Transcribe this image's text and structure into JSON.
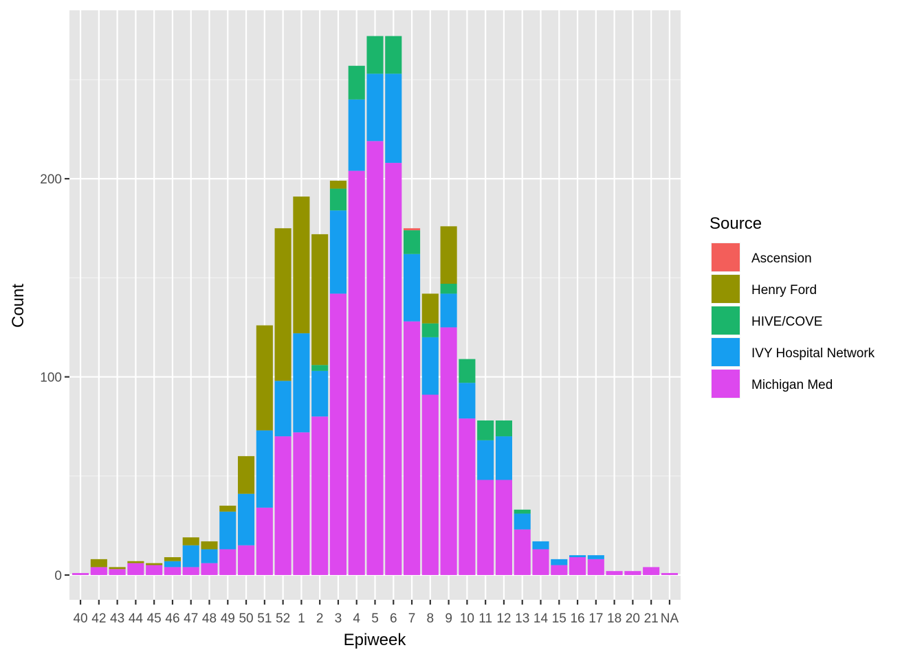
{
  "chart_data": {
    "type": "bar",
    "stacked": true,
    "xlabel": "Epiweek",
    "ylabel": "Count",
    "ylim": [
      -12.5,
      285
    ],
    "yticks": [
      0,
      100,
      200
    ],
    "grid": true,
    "legend_title": "Source",
    "legend_position": "right",
    "categories": [
      "40",
      "42",
      "43",
      "44",
      "45",
      "46",
      "47",
      "48",
      "49",
      "50",
      "51",
      "52",
      "1",
      "2",
      "3",
      "4",
      "5",
      "6",
      "7",
      "8",
      "9",
      "10",
      "11",
      "12",
      "13",
      "14",
      "15",
      "16",
      "17",
      "18",
      "20",
      "21",
      "NA"
    ],
    "series": [
      {
        "name": "Ascension",
        "color": "#F35E5A",
        "values": [
          0,
          0,
          0,
          0,
          0,
          0,
          0,
          0,
          0,
          0,
          0,
          0,
          0,
          0,
          0,
          0,
          0,
          0,
          1,
          0,
          0,
          0,
          0,
          0,
          0,
          0,
          0,
          0,
          0,
          0,
          0,
          0,
          0
        ]
      },
      {
        "name": "Henry Ford",
        "color": "#939300",
        "values": [
          0,
          4,
          1,
          1,
          1,
          2,
          4,
          4,
          3,
          19,
          53,
          77,
          69,
          66,
          4,
          0,
          0,
          0,
          0,
          15,
          29,
          0,
          0,
          0,
          0,
          0,
          0,
          0,
          0,
          0,
          0,
          0,
          0
        ]
      },
      {
        "name": "HIVE/COVE",
        "color": "#1BB56B",
        "values": [
          0,
          0,
          0,
          0,
          0,
          0,
          0,
          0,
          0,
          0,
          0,
          0,
          0,
          3,
          11,
          17,
          19,
          19,
          12,
          7,
          5,
          12,
          10,
          8,
          2,
          0,
          0,
          0,
          0,
          0,
          0,
          0,
          0
        ]
      },
      {
        "name": "IVY Hospital Network",
        "color": "#169EF0",
        "values": [
          0,
          0,
          0,
          0,
          0,
          3,
          11,
          7,
          19,
          26,
          39,
          28,
          50,
          23,
          42,
          36,
          34,
          45,
          34,
          29,
          17,
          18,
          20,
          22,
          8,
          4,
          3,
          1,
          2,
          0,
          0,
          0,
          0
        ]
      },
      {
        "name": "Michigan Med",
        "color": "#DD48EE",
        "values": [
          1,
          4,
          3,
          6,
          5,
          4,
          4,
          6,
          13,
          15,
          34,
          70,
          72,
          80,
          142,
          204,
          219,
          208,
          128,
          91,
          125,
          79,
          48,
          48,
          23,
          13,
          5,
          9,
          8,
          2,
          2,
          4,
          1
        ]
      }
    ]
  }
}
